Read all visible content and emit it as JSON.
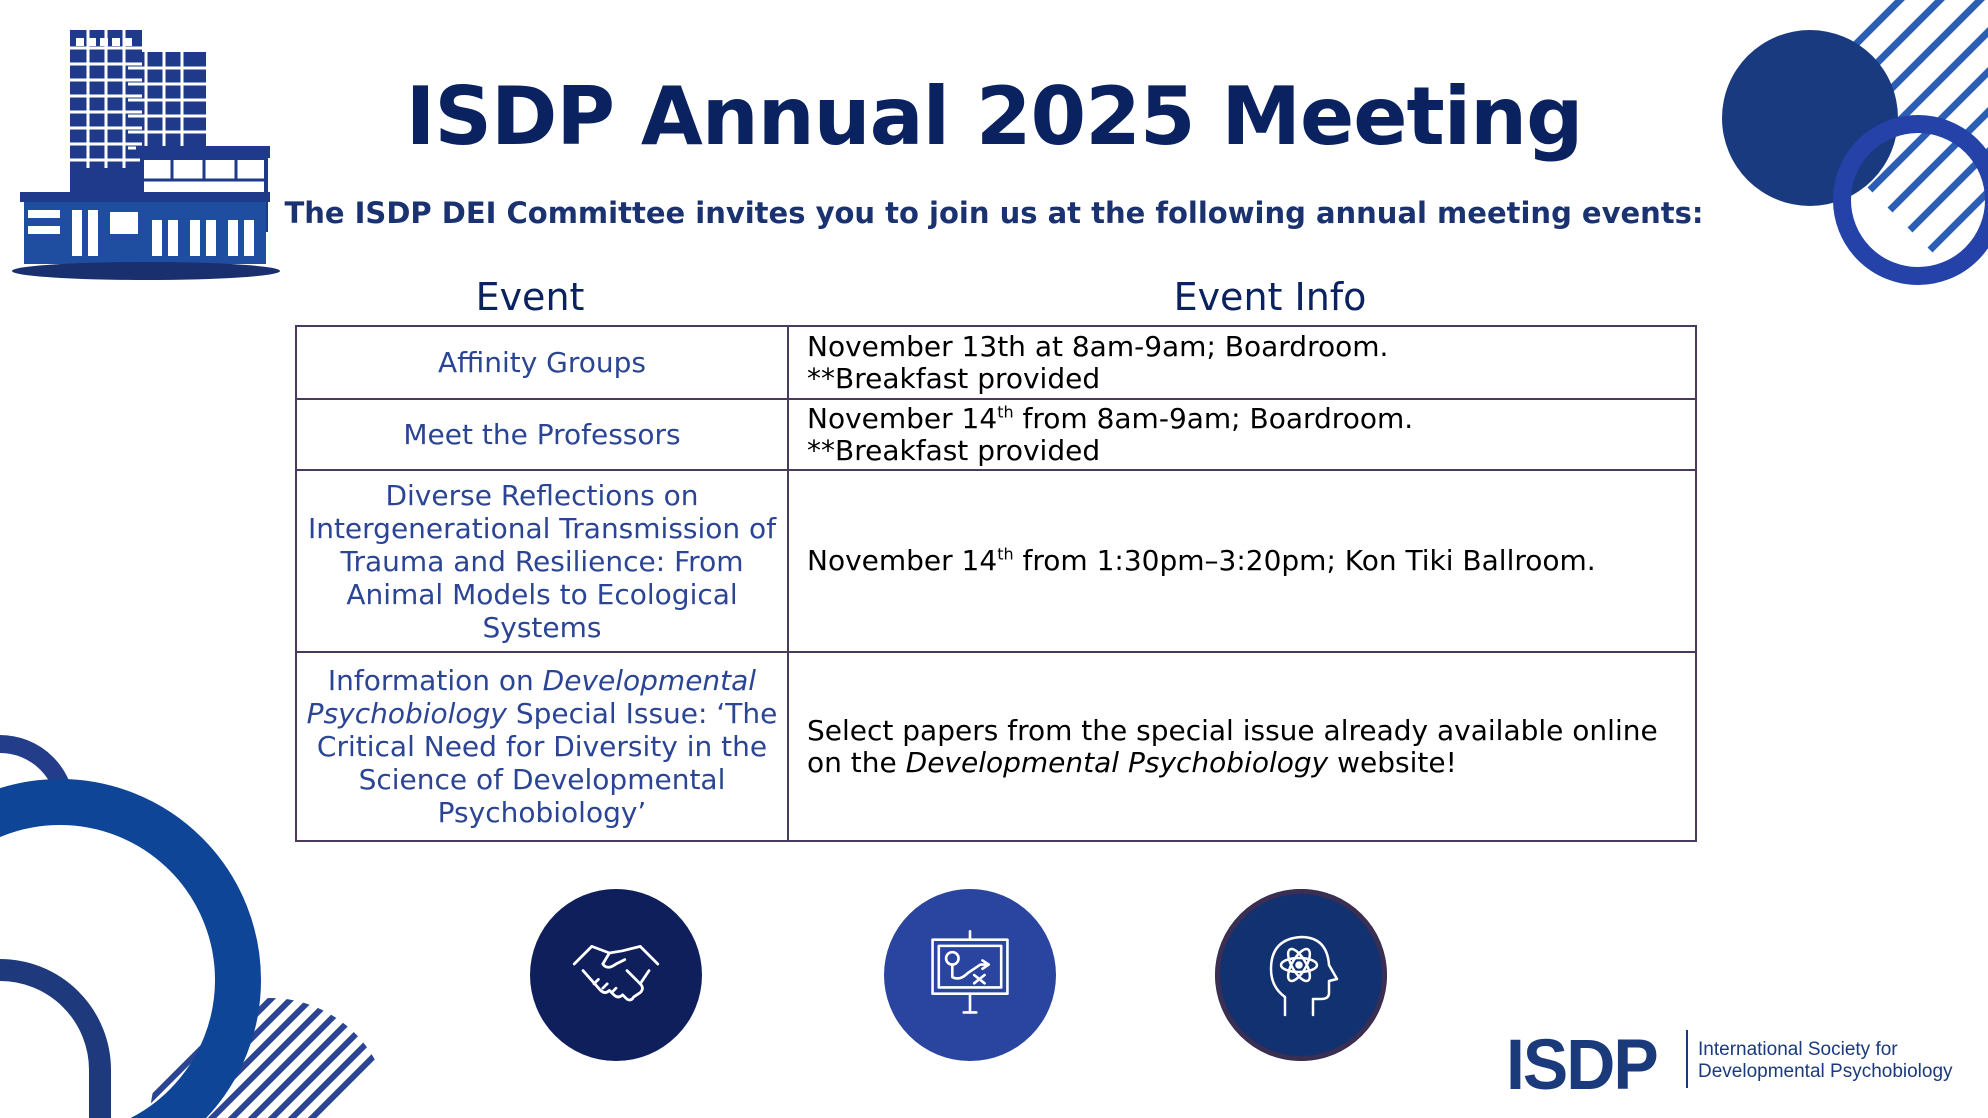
{
  "header": {
    "title": "ISDP Annual 2025 Meeting",
    "subtitle": "The ISDP DEI Committee invites you to join us at the following annual meeting events:"
  },
  "table": {
    "headers": [
      "Event",
      "Event Info"
    ],
    "rows": [
      {
        "event": "Affinity Groups",
        "info_line1": "November 13th at 8am-9am; Boardroom.",
        "info_line2": "**Breakfast provided"
      },
      {
        "event": "Meet the Professors",
        "info_pre": "November 14",
        "info_sup": "th",
        "info_post": " from 8am-9am; Boardroom.",
        "info_line2": "**Breakfast provided"
      },
      {
        "event": "Diverse Reflections on Intergenerational Transmission of Trauma and Resilience: From Animal Models to Ecological Systems",
        "info_pre": "November 14",
        "info_sup": "th",
        "info_post": " from 1:30pm–3:20pm; Kon Tiki Ballroom."
      },
      {
        "event_pre": "Information on ",
        "event_italic": "Developmental Psychobiology",
        "event_post": " Special Issue: ‘The Critical Need for Diversity in the Science of Developmental Psychobiology’",
        "info_pre": "Select papers from the special issue already available online on the ",
        "info_italic": "Developmental Psychobiology",
        "info_post": " website!"
      }
    ]
  },
  "icons": [
    "handshake-icon",
    "presentation-board-icon",
    "brain-atom-icon"
  ],
  "logo": {
    "mark": "ISDP",
    "line1": "International Society for",
    "line2": "Developmental Psychobiology"
  },
  "colors": {
    "navy": "#0b2260",
    "blue": "#2b4594",
    "royal": "#1f4ea0",
    "border": "#4a3a5c"
  }
}
